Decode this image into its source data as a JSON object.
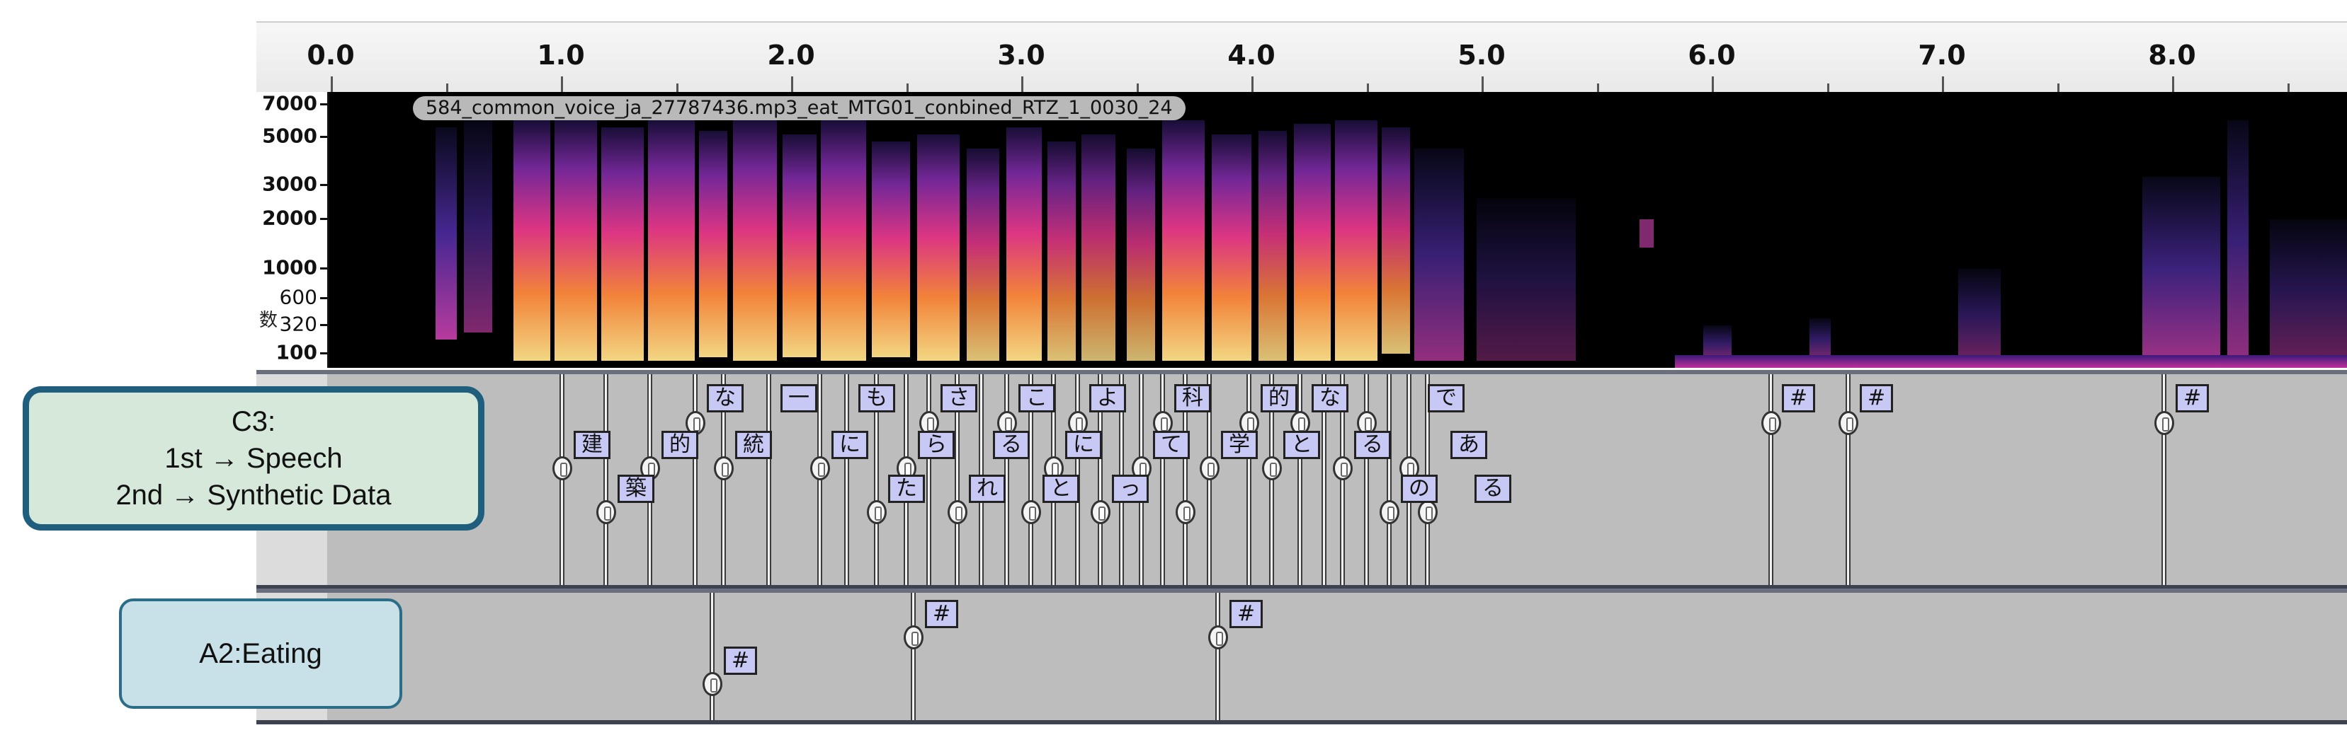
{
  "ruler": {
    "labels": [
      "0.0",
      "1.0",
      "2.0",
      "3.0",
      "4.0",
      "5.0",
      "6.0",
      "7.0",
      "8.0"
    ]
  },
  "spectrogram": {
    "clip_name": "584_common_voice_ja_27787436.mp3_eat_MTG01_conbined_RTZ_1_0030_24",
    "y_labels": [
      "7000",
      "5000",
      "3000",
      "2000",
      "1000",
      "600",
      "320",
      "100"
    ],
    "y_axis_title": "数"
  },
  "callouts": {
    "c3": {
      "line1": "C3:",
      "line2": "1st → Speech",
      "line3": "2nd → Synthetic Data"
    },
    "a2": {
      "text": "A2:Eating"
    }
  },
  "track_c_labels": [
    "建",
    "築",
    "的",
    "な",
    "統",
    "一",
    "に",
    "も",
    "た",
    "ら",
    "さ",
    "れ",
    "る",
    "こ",
    "と",
    "に",
    "よ",
    "っ",
    "て",
    "科",
    "学",
    "的",
    "と",
    "な",
    "る",
    "の",
    "で",
    "あ",
    "る",
    "#",
    "#",
    "#"
  ],
  "track_a_labels": [
    "#",
    "#",
    "#"
  ],
  "colors": {
    "spectrogram_hot": "#ffd27a",
    "spectrogram_mid": "#e8388b",
    "spectrogram_low": "#3a2a8c",
    "label_fill": "#c8c8f5",
    "track_bg": "#bdbdbd",
    "callout_border": "#1f5f7d"
  }
}
